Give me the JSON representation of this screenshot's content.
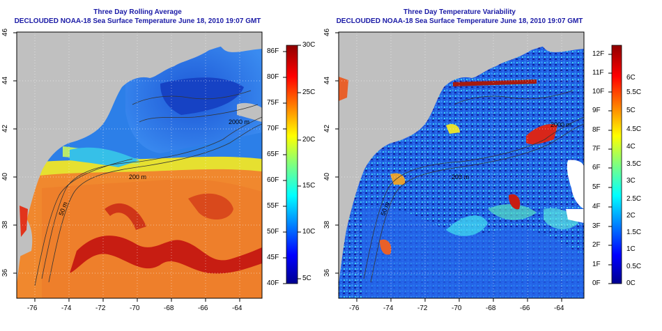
{
  "panels": [
    {
      "title": "Three Day Rolling Average",
      "subtitle": "DECLOUDED NOAA-18 Sea Surface Temperature June 18, 2010 19:07 GMT",
      "contour_labels": [
        "50 m",
        "200 m",
        "2000 m",
        "200 m",
        "200 m",
        "50 m",
        "2000 m"
      ],
      "colorbar_left_labels": [
        "86F",
        "80F",
        "75F",
        "70F",
        "65F",
        "60F",
        "55F",
        "50F",
        "45F",
        "40F"
      ],
      "colorbar_right_labels": [
        "30C",
        "25C",
        "20C",
        "15C",
        "10C",
        "5C"
      ]
    },
    {
      "title": "Three Day Temperature Variability",
      "subtitle": "DECLOUDED NOAA-18 Sea Surface Temperature June 18, 2010 19:07 GMT",
      "contour_labels": [
        "200 m",
        "2000 m",
        "50 m"
      ],
      "colorbar_left_labels": [
        "12F",
        "11F",
        "10F",
        "9F",
        "8F",
        "7F",
        "6F",
        "5F",
        "4F",
        "3F",
        "2F",
        "1F",
        "0F"
      ],
      "colorbar_right_labels": [
        "6C",
        "5.5C",
        "5C",
        "4.5C",
        "4C",
        "3.5C",
        "3C",
        "2.5C",
        "2C",
        "1.5C",
        "1C",
        "0.5C",
        "0C"
      ]
    }
  ],
  "lon_labels": [
    "-76",
    "-74",
    "-72",
    "-70",
    "-68",
    "-66",
    "-64"
  ],
  "lat_labels": [
    "46",
    "44",
    "42",
    "40",
    "38",
    "36"
  ],
  "colors": {
    "land": "#c0c0c0",
    "title": "#1a1aa6",
    "warm": "#e8602a",
    "gulf_stream": "#c71d12"
  }
}
